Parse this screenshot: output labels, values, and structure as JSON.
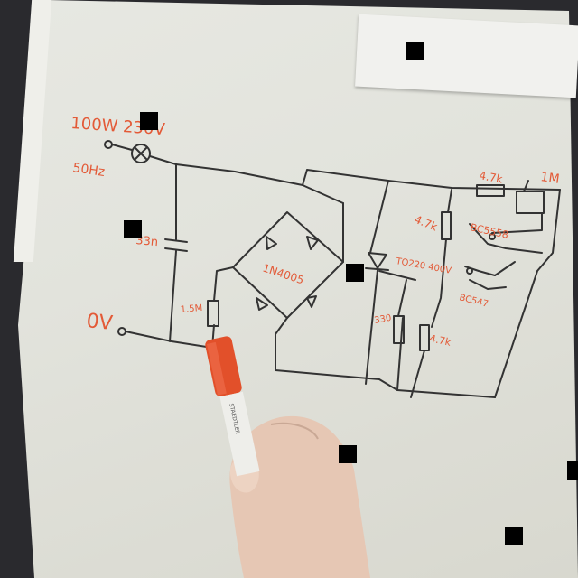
{
  "scene": {
    "subject": "hand-drawn circuit schematic on whiteboard",
    "labels": {
      "lamp_rating": "100W 230V",
      "frequency": "50Hz",
      "zero_volt": "0V",
      "capacitor": "33n",
      "resistor_main": "1.5M",
      "bridge": "1N4005",
      "r_top": "4.7k",
      "r_top_right": "1M",
      "r_mid": "4.7k",
      "transistor_1": "BC5558",
      "triac": "TO220 400V",
      "r_small": "330",
      "r_right": "4.7k",
      "transistor_2": "BC547"
    }
  },
  "colors": {
    "ink": "#333333",
    "label": "#e35a37",
    "marker_cap": "#e2502a",
    "board": "#e3e4dd",
    "background": "#2a2a2e",
    "skin": "#e8c9b6"
  },
  "marker": {
    "brand_text": "STAEDTLER"
  }
}
